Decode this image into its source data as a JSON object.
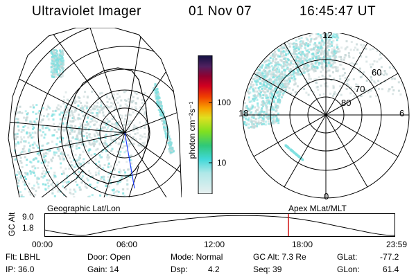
{
  "header": {
    "instrument": "Ultraviolet Imager",
    "date": "01 Nov 07",
    "time": "16:45:47 UT"
  },
  "colorbar": {
    "unit_label": "photon cm⁻²s⁻¹",
    "ticks": [
      "100",
      "10"
    ]
  },
  "polar_plot": {
    "mlt_labels": [
      "12",
      "18",
      "6",
      "0"
    ],
    "mlat_labels": [
      "60",
      "70",
      "80"
    ]
  },
  "map_labels": {
    "left": "Geographic Lat/Lon",
    "right": "Apex MLat/MLT"
  },
  "altitude_plot": {
    "ylabel": "GC Alt",
    "yticks": [
      "9.0",
      "1.8"
    ],
    "xticks": [
      "00:00",
      "06:00",
      "12:00",
      "18:00",
      "23:59"
    ],
    "marker_time": "16:45:47"
  },
  "info": {
    "flt": "Flt: LBHL",
    "ip": "IP: 36.0",
    "door": "Door: Open",
    "gain": "Gain: 14",
    "mode": "Mode: Normal",
    "dsp_label": "Dsp:",
    "dsp_value": "4.2",
    "gc_alt": "GC Alt: 7.3 Re",
    "seq": "Seq: 39",
    "glat_label": "GLat:",
    "glat_value": "-77.2",
    "glon_label": "GLon:",
    "glon_value": "61.4"
  },
  "colors": {
    "aurora_cyan": "#7fe0e0",
    "aurora_gray": "#c8d8d8",
    "marker_red": "#d01010"
  }
}
